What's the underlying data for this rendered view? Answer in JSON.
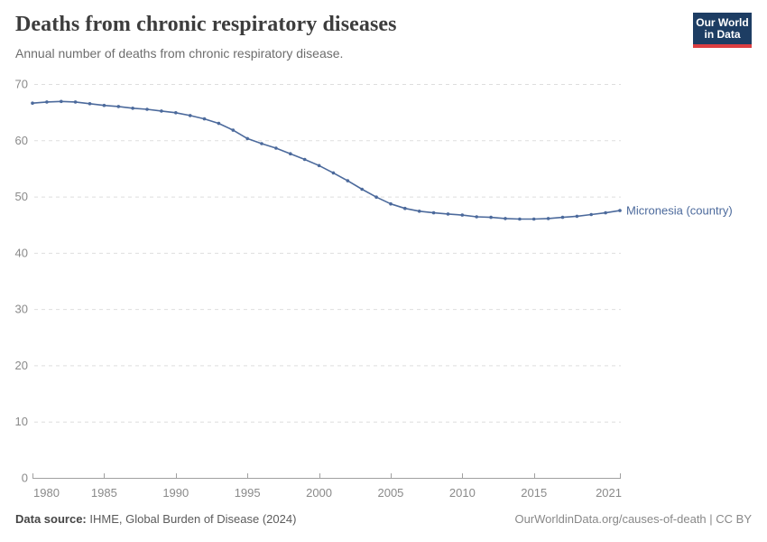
{
  "header": {
    "title": "Deaths from chronic respiratory diseases",
    "subtitle": "Annual number of deaths from chronic respiratory disease."
  },
  "logo": {
    "line1": "Our World",
    "line2": "in Data"
  },
  "footer": {
    "source_label": "Data source:",
    "source_text": "IHME, Global Burden of Disease (2024)",
    "credit": "OurWorldinData.org/causes-of-death | CC BY"
  },
  "colors": {
    "line": "#4c6a9c",
    "series_label": "#4c6a9c",
    "grid": "#dedede",
    "axis": "#a0a0a0",
    "tick_text": "#8a8a8a",
    "logo_bg": "#1d3d63",
    "logo_accent": "#dc3e41"
  },
  "chart_data": {
    "type": "line",
    "title": "Deaths from chronic respiratory diseases",
    "subtitle": "Annual number of deaths from chronic respiratory disease.",
    "xlabel": "",
    "ylabel": "",
    "grid": "horizontal-dashed",
    "legend_position": "end-of-line-label",
    "xlim": [
      1980,
      2021
    ],
    "ylim": [
      0,
      70
    ],
    "xticks": [
      1980,
      1985,
      1990,
      1995,
      2000,
      2005,
      2010,
      2015,
      2021
    ],
    "yticks": [
      0,
      10,
      20,
      30,
      40,
      50,
      60,
      70
    ],
    "x": [
      1980,
      1981,
      1982,
      1983,
      1984,
      1985,
      1986,
      1987,
      1988,
      1989,
      1990,
      1991,
      1992,
      1993,
      1994,
      1995,
      1996,
      1997,
      1998,
      1999,
      2000,
      2001,
      2002,
      2003,
      2004,
      2005,
      2006,
      2007,
      2008,
      2009,
      2010,
      2011,
      2012,
      2013,
      2014,
      2015,
      2016,
      2017,
      2018,
      2019,
      2020,
      2021
    ],
    "series": [
      {
        "name": "Micronesia (country)",
        "values": [
          66.6,
          66.8,
          66.9,
          66.8,
          66.5,
          66.2,
          66.0,
          65.7,
          65.5,
          65.2,
          64.9,
          64.4,
          63.8,
          63.0,
          61.8,
          60.3,
          59.4,
          58.6,
          57.6,
          56.6,
          55.5,
          54.2,
          52.8,
          51.3,
          49.9,
          48.7,
          47.9,
          47.4,
          47.1,
          46.9,
          46.7,
          46.4,
          46.3,
          46.1,
          46.0,
          46.0,
          46.1,
          46.3,
          46.5,
          46.8,
          47.1,
          47.5
        ]
      }
    ]
  }
}
